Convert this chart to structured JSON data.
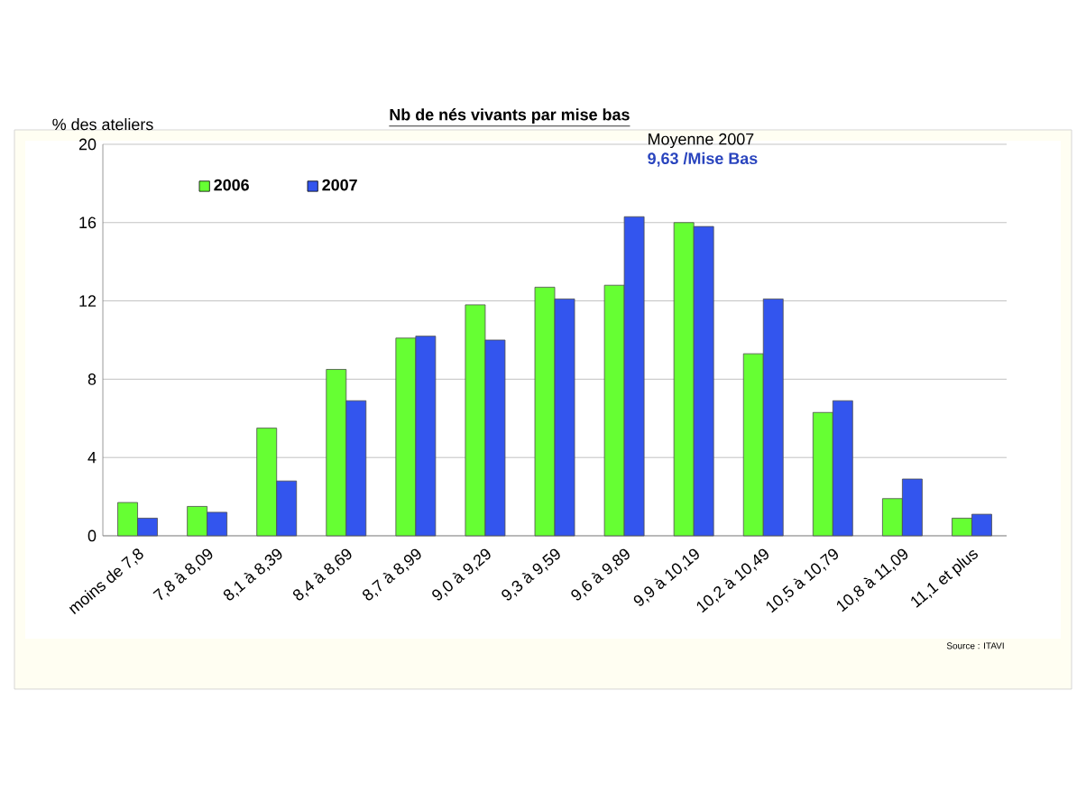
{
  "chart_data": {
    "type": "bar",
    "title": "Nb de nés vivants par mise bas",
    "ylabel": "% des ateliers",
    "categories": [
      "moins de 7,8",
      "7,8 à 8,09",
      "8,1 à 8,39",
      "8,4 à 8,69",
      "8,7 à 8,99",
      "9,0 à 9,29",
      "9,3 à 9,59",
      "9,6 à 9,89",
      "9,9 à 10,19",
      "10,2 à 10,49",
      "10,5 à 10,79",
      "10,8 à 11,09",
      "11,1 et plus"
    ],
    "series": [
      {
        "name": "2006",
        "color": "#66ff33",
        "values": [
          1.7,
          1.5,
          5.5,
          8.5,
          10.1,
          11.8,
          12.7,
          12.8,
          16.0,
          9.3,
          6.3,
          1.9,
          0.9
        ]
      },
      {
        "name": "2007",
        "color": "#3355ee",
        "values": [
          0.9,
          1.2,
          2.8,
          6.9,
          10.2,
          10.0,
          12.1,
          16.3,
          15.8,
          12.1,
          6.9,
          2.9,
          1.1
        ]
      }
    ],
    "ylim": [
      0,
      20
    ],
    "yticks": [
      0,
      4,
      8,
      12,
      16,
      20
    ],
    "grid": "y",
    "legend": "top left",
    "annotations": [
      "Moyenne  2007",
      "9,63 /Mise Bas",
      "Source : ITAVI"
    ]
  }
}
